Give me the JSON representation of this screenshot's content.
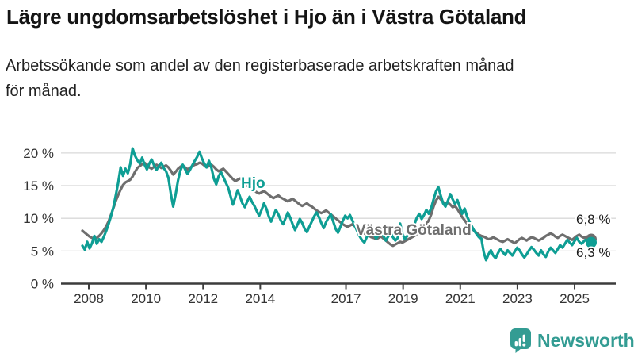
{
  "header": {
    "title": "Lägre ungdomsarbetslöshet i Hjo än i Västra Götaland",
    "subtitle_lines": [
      "Arbetssökande som andel av den registerbaserade arbetskraften månad",
      "för månad."
    ]
  },
  "footer": {
    "brand": "Newsworthy",
    "logo_icon": "bar-chart-speech-bubble-icon"
  },
  "colors": {
    "hjo": "#0e9e94",
    "vastra_gotaland": "#6e6e6e",
    "gridline": "#d8d8d8",
    "axis": "#3c3c3c",
    "axis_text": "#333333",
    "value_label_text": "#1a1a1a",
    "brand_teal": "#339c93"
  },
  "chart_data": {
    "type": "line",
    "x_unit": "month",
    "x_start": "2008-01",
    "x_end": "2025-10",
    "x_tick_years": [
      2008,
      2010,
      2012,
      2014,
      2017,
      2019,
      2021,
      2023,
      2025
    ],
    "x_tick_labels": [
      "2008",
      "2010",
      "2012",
      "2014",
      "2017",
      "2019",
      "2021",
      "2023",
      "2025"
    ],
    "y_ticks": [
      0,
      5,
      10,
      15,
      20
    ],
    "y_tick_labels": [
      "0 %",
      "5 %",
      "10 %",
      "15 %",
      "20 %"
    ],
    "ylim": [
      0,
      21.5
    ],
    "grid": "horizontal-only",
    "legend": "inline-series-labels",
    "series": [
      {
        "name": "Västra Götaland",
        "color": "#6e6e6e",
        "end_label": "6,8 %",
        "end_value": 6.8,
        "values": [
          8.1,
          7.8,
          7.5,
          7.2,
          7.0,
          6.9,
          7.0,
          7.3,
          7.7,
          8.2,
          8.8,
          9.6,
          10.6,
          11.6,
          12.7,
          13.6,
          14.4,
          15.1,
          15.5,
          15.7,
          15.9,
          16.4,
          17.1,
          17.7,
          18.0,
          18.3,
          18.5,
          18.2,
          17.8,
          17.6,
          17.9,
          18.2,
          18.0,
          17.7,
          17.9,
          18.1,
          17.8,
          17.3,
          16.7,
          17.1,
          17.6,
          17.9,
          18.1,
          17.8,
          17.5,
          17.7,
          18.0,
          18.2,
          18.3,
          18.5,
          18.4,
          18.1,
          17.8,
          18.0,
          18.2,
          17.9,
          17.5,
          17.2,
          17.4,
          17.6,
          17.2,
          16.8,
          16.4,
          16.0,
          15.7,
          15.9,
          16.1,
          15.8,
          15.4,
          15.0,
          14.7,
          14.4,
          14.2,
          14.0,
          13.8,
          14.0,
          14.2,
          13.9,
          13.6,
          13.3,
          13.1,
          13.3,
          13.5,
          13.2,
          13.0,
          12.8,
          12.6,
          12.8,
          13.0,
          12.7,
          12.4,
          12.1,
          11.9,
          12.1,
          12.3,
          12.0,
          11.8,
          11.5,
          11.2,
          11.0,
          10.8,
          11.0,
          11.2,
          10.9,
          10.6,
          10.3,
          10.0,
          9.7,
          9.4,
          9.1,
          8.9,
          8.7,
          8.9,
          9.1,
          8.8,
          8.5,
          8.2,
          7.9,
          7.7,
          7.5,
          7.3,
          7.1,
          7.0,
          6.8,
          7.0,
          7.2,
          6.9,
          6.6,
          6.3,
          6.0,
          5.8,
          6.0,
          6.2,
          6.4,
          6.3,
          6.5,
          6.7,
          6.9,
          7.1,
          7.3,
          7.6,
          7.9,
          8.2,
          8.6,
          9.1,
          9.7,
          10.6,
          11.8,
          12.7,
          13.3,
          12.9,
          12.5,
          12.2,
          12.4,
          12.1,
          11.7,
          11.9,
          11.4,
          10.8,
          10.2,
          9.7,
          9.2,
          8.8,
          8.4,
          8.1,
          7.8,
          7.5,
          7.3,
          7.2,
          7.0,
          6.8,
          6.9,
          7.1,
          6.9,
          6.7,
          6.5,
          6.4,
          6.6,
          6.8,
          6.6,
          6.4,
          6.2,
          6.5,
          6.8,
          7.0,
          6.8,
          6.6,
          6.9,
          7.1,
          7.0,
          6.8,
          6.6,
          6.8,
          7.0,
          7.3,
          7.5,
          7.7,
          7.5,
          7.2,
          7.0,
          7.3,
          7.5,
          7.3,
          7.1,
          6.9,
          6.7,
          7.0,
          7.3,
          7.5,
          7.2,
          7.0,
          7.2,
          7.0,
          6.8
        ]
      },
      {
        "name": "Hjo",
        "color": "#0e9e94",
        "end_label": "6,3 %",
        "end_value": 6.3,
        "values": [
          5.8,
          5.2,
          6.4,
          5.4,
          6.2,
          7.3,
          6.1,
          6.8,
          6.4,
          7.2,
          8.1,
          9.2,
          10.4,
          11.8,
          13.6,
          15.5,
          17.8,
          16.5,
          17.6,
          16.9,
          18.3,
          20.7,
          19.6,
          18.9,
          18.4,
          19.3,
          18.2,
          17.5,
          18.4,
          19.0,
          18.1,
          17.4,
          18.0,
          18.5,
          17.7,
          17.2,
          16.2,
          13.8,
          11.8,
          13.6,
          15.8,
          17.3,
          18.2,
          17.5,
          16.8,
          17.4,
          18.1,
          18.8,
          19.4,
          20.2,
          19.2,
          18.4,
          17.8,
          18.8,
          17.7,
          16.1,
          15.2,
          16.4,
          17.1,
          16.3,
          15.5,
          14.7,
          13.4,
          12.1,
          13.2,
          14.3,
          13.3,
          12.3,
          11.7,
          12.6,
          13.3,
          12.5,
          11.9,
          11.1,
          10.4,
          11.3,
          12.3,
          11.5,
          10.3,
          9.5,
          10.4,
          11.3,
          10.6,
          9.7,
          9.1,
          10.0,
          10.9,
          10.1,
          9.1,
          8.2,
          9.0,
          9.9,
          9.3,
          8.4,
          7.9,
          8.7,
          9.5,
          10.3,
          10.9,
          10.2,
          9.3,
          8.5,
          9.4,
          10.1,
          10.6,
          9.5,
          8.4,
          7.8,
          8.7,
          9.6,
          10.4,
          10.0,
          10.5,
          9.7,
          8.9,
          8.1,
          7.3,
          6.7,
          6.3,
          7.1,
          7.7,
          8.3,
          7.6,
          6.9,
          7.5,
          8.1,
          7.3,
          6.6,
          7.2,
          7.8,
          7.1,
          6.6,
          7.0,
          9.2,
          7.6,
          6.8,
          7.3,
          7.9,
          8.5,
          9.1,
          10.1,
          10.7,
          9.9,
          10.5,
          11.3,
          10.7,
          11.6,
          12.9,
          14.1,
          14.8,
          13.5,
          12.3,
          11.8,
          12.7,
          13.7,
          12.9,
          12.2,
          12.8,
          11.7,
          10.7,
          11.5,
          10.3,
          9.5,
          8.8,
          8.1,
          7.6,
          7.1,
          6.9,
          4.8,
          3.6,
          4.5,
          5.1,
          4.3,
          3.9,
          4.7,
          5.3,
          4.8,
          4.4,
          5.1,
          4.7,
          4.3,
          4.9,
          5.5,
          5.1,
          4.5,
          4.0,
          4.5,
          5.1,
          5.6,
          5.2,
          4.7,
          4.3,
          5.1,
          4.5,
          4.1,
          4.9,
          5.5,
          5.1,
          4.7,
          5.3,
          5.9,
          5.5,
          6.1,
          6.7,
          6.3,
          5.9,
          6.5,
          7.0,
          6.4,
          6.1,
          6.5,
          6.8,
          6.5,
          6.3
        ]
      }
    ]
  }
}
